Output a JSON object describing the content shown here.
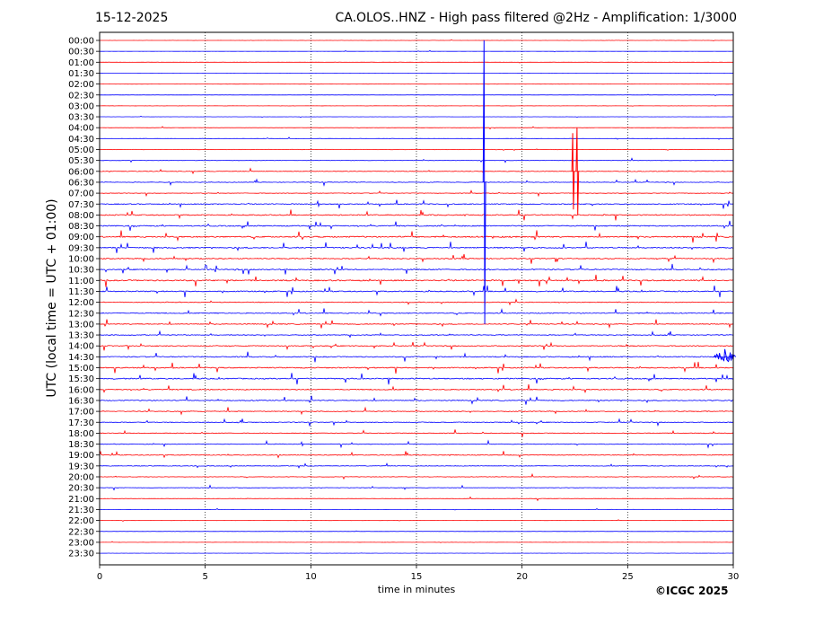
{
  "header": {
    "date": "15-12-2025",
    "title": "CA.OLOS..HNZ - High pass filtered @2Hz - Amplification: 1/3000"
  },
  "footer": {
    "copyright": "©ICGC 2025"
  },
  "colors": {
    "red": "#ff0000",
    "blue": "#0000ff",
    "axis": "#000000",
    "grid": "#000000"
  },
  "chart_data": {
    "type": "line",
    "xlabel": "time in minutes",
    "ylabel": "UTC (local time = UTC + 01:00)",
    "xlim": [
      0,
      30
    ],
    "xticks": [
      0,
      5,
      10,
      15,
      20,
      25,
      30
    ],
    "grid": "vertical dotted at 5,10,15,20,25",
    "rows": [
      "00:00",
      "00:30",
      "01:00",
      "01:30",
      "02:00",
      "02:30",
      "03:00",
      "03:30",
      "04:00",
      "04:30",
      "05:00",
      "05:30",
      "06:00",
      "06:30",
      "07:00",
      "07:30",
      "08:00",
      "08:30",
      "09:00",
      "09:30",
      "10:00",
      "10:30",
      "11:00",
      "11:30",
      "12:00",
      "12:30",
      "13:00",
      "13:30",
      "14:00",
      "14:30",
      "15:00",
      "15:30",
      "16:00",
      "16:30",
      "17:00",
      "17:30",
      "18:00",
      "18:30",
      "19:00",
      "19:30",
      "20:00",
      "20:30",
      "21:00",
      "21:30",
      "22:00",
      "22:30",
      "23:00",
      "23:30"
    ],
    "row_colors": "alternating red (even rows) and blue (odd rows)",
    "noise_level": [
      0.3,
      0.3,
      0.3,
      0.3,
      0.3,
      0.3,
      0.3,
      0.3,
      0.5,
      0.5,
      0.8,
      0.8,
      1.2,
      1.2,
      1.0,
      1.8,
      2.0,
      2.2,
      2.5,
      2.3,
      2.0,
      2.2,
      2.5,
      2.2,
      1.5,
      1.8,
      1.8,
      1.6,
      1.8,
      2.0,
      2.2,
      2.2,
      2.0,
      1.8,
      1.6,
      1.5,
      1.4,
      1.3,
      1.5,
      1.2,
      1.0,
      0.9,
      0.7,
      0.5,
      0.3,
      0.3,
      0.3,
      0.3
    ],
    "events": [
      {
        "row": "06:30",
        "minute": 18.2,
        "amplitude": 13,
        "label": "large vertical spike"
      },
      {
        "row": "06:00",
        "minute": 22.4,
        "amplitude": 3.5,
        "label": "spike"
      },
      {
        "row": "06:00",
        "minute": 22.6,
        "amplitude": 4.0,
        "label": "spike"
      },
      {
        "row": "14:30",
        "minute": 29.6,
        "amplitude": 0.8,
        "label": "burst"
      }
    ]
  }
}
